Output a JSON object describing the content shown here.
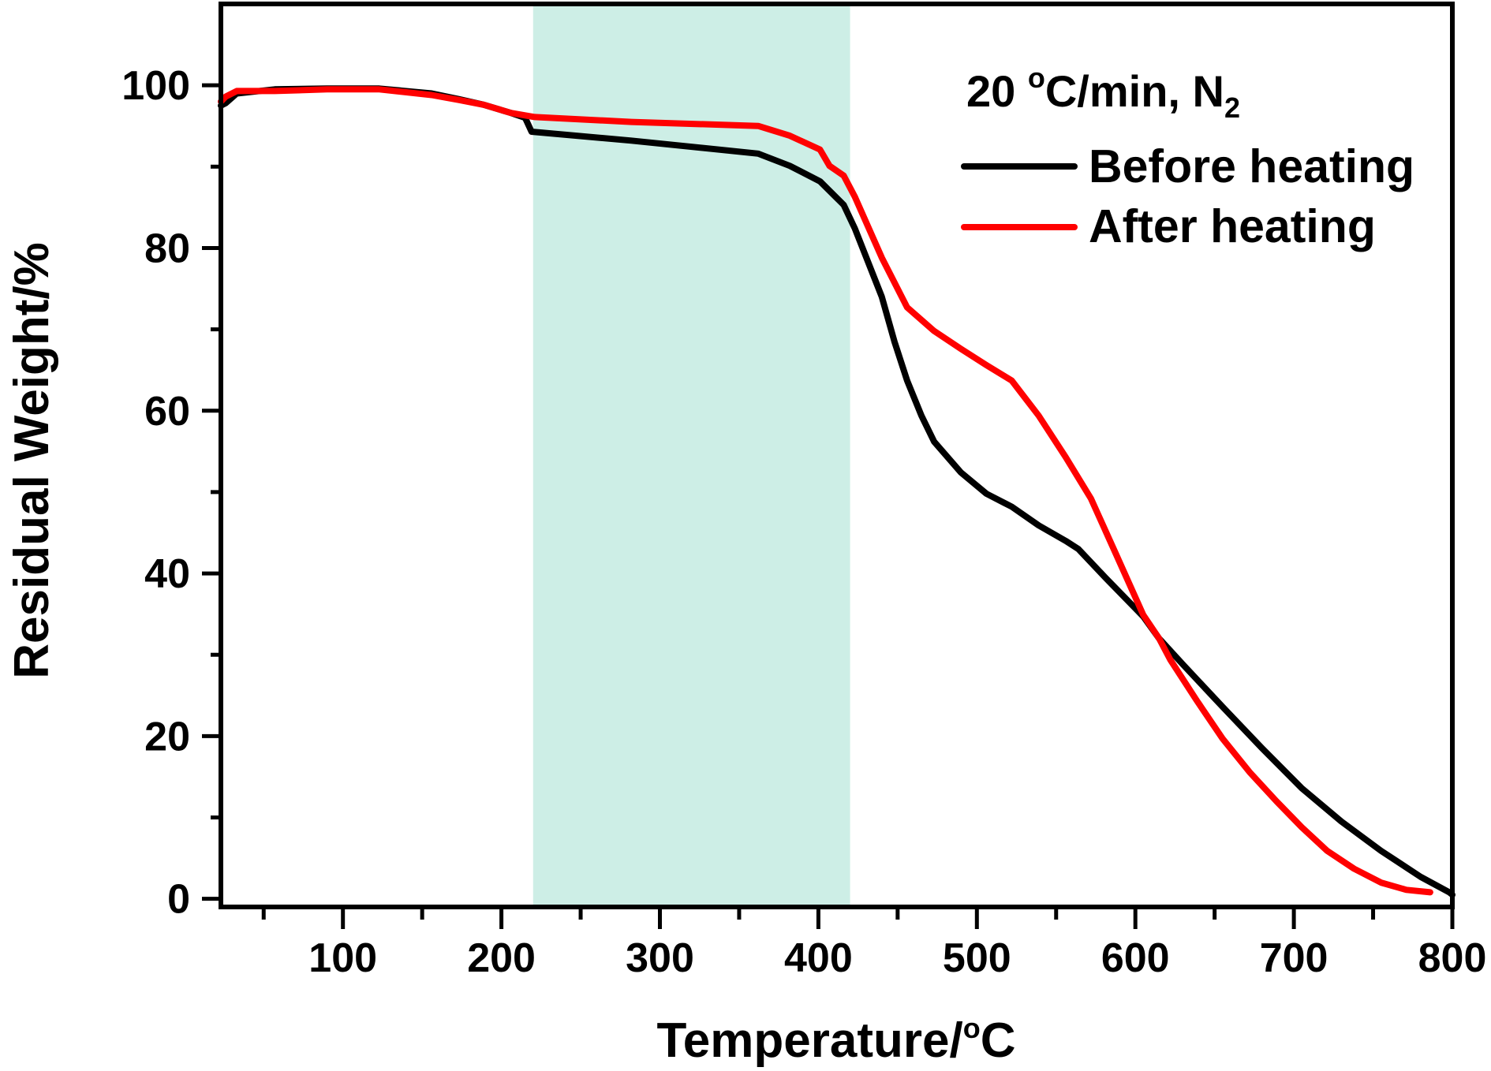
{
  "chart_data": {
    "type": "line",
    "title": "",
    "xlabel": "Temperature/°C",
    "xlabel_parts": {
      "main": "Temperature/",
      "sup": "o",
      "tail": "C"
    },
    "ylabel": "Residual Weight/%",
    "xlim": [
      23,
      800
    ],
    "ylim": [
      -1,
      110
    ],
    "xticks": [
      100,
      200,
      300,
      400,
      500,
      600,
      700,
      800
    ],
    "xtick_labels": [
      "100",
      "200",
      "300",
      "400",
      "500",
      "600",
      "700",
      "800"
    ],
    "xminor": [
      50,
      150,
      250,
      350,
      450,
      550,
      650,
      750
    ],
    "yticks": [
      0,
      20,
      40,
      60,
      80,
      100
    ],
    "ytick_labels": [
      "0",
      "20",
      "40",
      "60",
      "80",
      "100"
    ],
    "yminor": [
      10,
      30,
      50,
      70,
      90
    ],
    "grid": false,
    "shaded_region": {
      "x_start": 220,
      "x_end": 420,
      "color": "#CDEEE6"
    },
    "legend": {
      "placement": "top-right",
      "title": {
        "main": "20 ",
        "sup": "o",
        "mid": "C/min, N",
        "sub": "2"
      },
      "title_text": "20 °C/min, N2"
    },
    "series": [
      {
        "name": "Before heating",
        "color": "#000000",
        "x": [
          23,
          26,
          33,
          57,
          90,
          123,
          156,
          173,
          189,
          206,
          215,
          219,
          282,
          362,
          382,
          401,
          416,
          423,
          440,
          448,
          456,
          465,
          473,
          490,
          506,
          522,
          539,
          556,
          564,
          581,
          605,
          615,
          630,
          655,
          680,
          705,
          730,
          755,
          780,
          798,
          800
        ],
        "y": [
          97.5,
          97.8,
          99.0,
          99.5,
          99.6,
          99.6,
          99.0,
          98.3,
          97.6,
          96.6,
          96.0,
          94.3,
          93.2,
          91.6,
          90.1,
          88.2,
          85.3,
          82.4,
          74.0,
          68.5,
          63.7,
          59.4,
          56.2,
          52.4,
          49.8,
          48.2,
          45.9,
          44.0,
          43.0,
          39.5,
          34.7,
          32.0,
          28.8,
          23.6,
          18.5,
          13.6,
          9.5,
          5.9,
          2.7,
          0.8,
          0.5
        ]
      },
      {
        "name": "After heating",
        "color": "#FF0000",
        "x": [
          23,
          26,
          33,
          57,
          90,
          123,
          156,
          173,
          189,
          206,
          221,
          282,
          362,
          382,
          401,
          407,
          416,
          423,
          440,
          456,
          473,
          490,
          506,
          522,
          539,
          556,
          572,
          587,
          605,
          615,
          622,
          639,
          655,
          672,
          689,
          705,
          721,
          738,
          755,
          771,
          786
        ],
        "y": [
          98.0,
          98.6,
          99.3,
          99.3,
          99.5,
          99.5,
          98.8,
          98.2,
          97.6,
          96.6,
          96.1,
          95.5,
          95.0,
          93.8,
          92.1,
          90.1,
          88.9,
          86.3,
          78.8,
          72.7,
          69.8,
          67.6,
          65.6,
          63.7,
          59.4,
          54.3,
          49.2,
          42.7,
          34.9,
          32.0,
          29.4,
          24.3,
          19.7,
          15.6,
          12.0,
          8.8,
          5.9,
          3.7,
          2.0,
          1.1,
          0.8
        ]
      }
    ]
  }
}
